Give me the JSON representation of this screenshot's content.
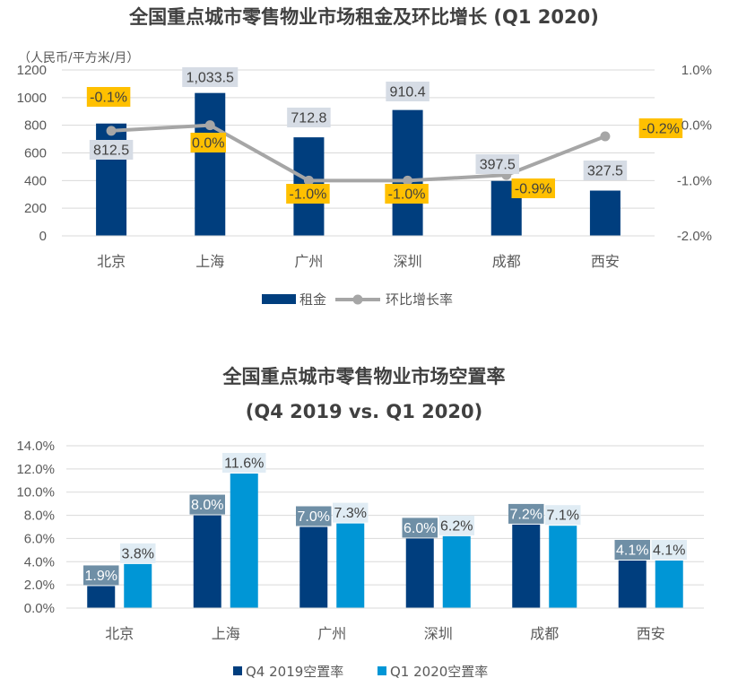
{
  "chart_data": [
    {
      "type": "bar+line",
      "title": "全国重点城市零售物业市场租金及环比增长 (Q1 2020)",
      "ylabel_left": "（人民币/平方米/月）",
      "categories": [
        "北京",
        "上海",
        "广州",
        "深圳",
        "成都",
        "西安"
      ],
      "series": [
        {
          "name": "租金",
          "type": "bar",
          "axis": "left",
          "values": [
            812.5,
            1033.5,
            712.8,
            910.4,
            397.5,
            327.5
          ],
          "labels": [
            "812.5",
            "1,033.5",
            "712.8",
            "910.4",
            "397.5",
            "327.5"
          ]
        },
        {
          "name": "环比增长率",
          "type": "line",
          "axis": "right",
          "values": [
            -0.1,
            0.0,
            -1.0,
            -1.0,
            -0.9,
            -0.2
          ],
          "labels": [
            "-0.1%",
            "0.0%",
            "-1.0%",
            "-1.0%",
            "-0.9%",
            "-0.2%"
          ]
        }
      ],
      "ylim_left": [
        0,
        1200
      ],
      "yticks_left": [
        "0",
        "200",
        "400",
        "600",
        "800",
        "1000",
        "1200"
      ],
      "ylim_right": [
        -2.0,
        1.0
      ],
      "yticks_right": [
        "-2.0%",
        "-1.0%",
        "0.0%",
        "1.0%"
      ],
      "legend": "bottom",
      "colors": {
        "bar": "#003e7e",
        "line": "#a6a6a6",
        "bar_label_bg": "#d6dce5",
        "line_label_bg": "#ffc000"
      }
    },
    {
      "type": "bar",
      "title": "全国重点城市零售物业市场空置率",
      "subtitle": "(Q4 2019 vs. Q1 2020)",
      "categories": [
        "北京",
        "上海",
        "广州",
        "深圳",
        "成都",
        "西安"
      ],
      "series": [
        {
          "name": "Q4 2019空置率",
          "values": [
            1.9,
            8.0,
            7.0,
            6.0,
            7.2,
            4.1
          ],
          "labels": [
            "1.9%",
            "8.0%",
            "7.0%",
            "6.0%",
            "7.2%",
            "4.1%"
          ]
        },
        {
          "name": "Q1 2020空置率",
          "values": [
            3.8,
            11.6,
            7.3,
            6.2,
            7.1,
            4.1
          ],
          "labels": [
            "3.8%",
            "11.6%",
            "7.3%",
            "6.2%",
            "7.1%",
            "4.1%"
          ]
        }
      ],
      "ylim": [
        0,
        14
      ],
      "yticks": [
        "0.0%",
        "2.0%",
        "4.0%",
        "6.0%",
        "8.0%",
        "10.0%",
        "12.0%",
        "14.0%"
      ],
      "legend": "bottom",
      "colors": {
        "q4": "#003e7e",
        "q1": "#0096d6",
        "q4_label_bg": "#6f8fa6",
        "q1_label_bg": "#e0ecf4"
      }
    }
  ]
}
